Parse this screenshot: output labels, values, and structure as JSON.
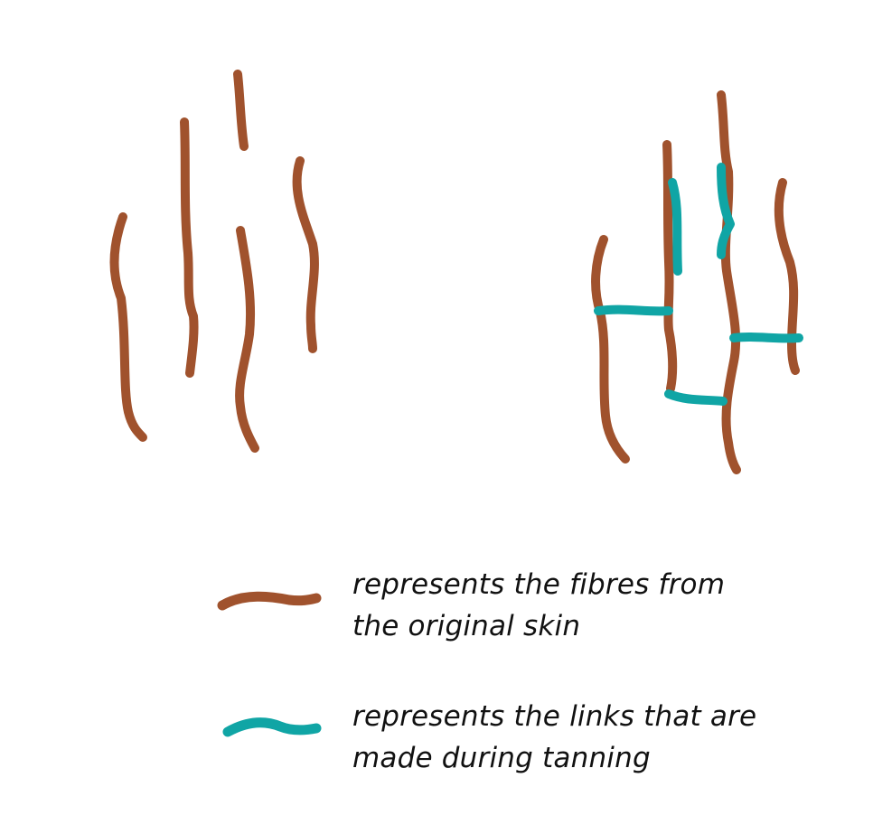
{
  "colors": {
    "fibre": "#a0522d",
    "link": "#10a5a5",
    "text": "#111111",
    "background": "#ffffff"
  },
  "legend": {
    "fibre": {
      "line1": "represents the fibres from",
      "line2": "the original skin"
    },
    "link": {
      "line1": "represents the links that are",
      "line2": "made during tanning"
    }
  }
}
